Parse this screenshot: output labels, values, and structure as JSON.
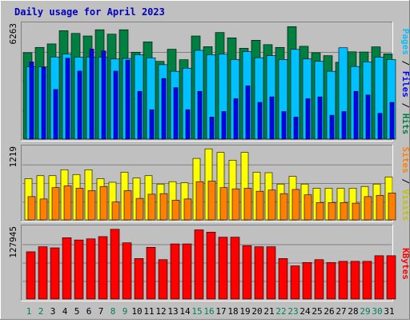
{
  "chart_data": [
    {
      "type": "bar",
      "panel": "pages-files-hits",
      "title": "Daily usage for April 2023",
      "ylabel_max": "6263",
      "legend": [
        "Pages",
        "Files",
        "Hits"
      ],
      "categories": [
        "1",
        "2",
        "3",
        "4",
        "5",
        "6",
        "7",
        "8",
        "9",
        "10",
        "11",
        "12",
        "13",
        "14",
        "15",
        "16",
        "17",
        "18",
        "19",
        "20",
        "21",
        "22",
        "23",
        "24",
        "25",
        "26",
        "27",
        "28",
        "29",
        "30",
        "31"
      ],
      "ylim": [
        0,
        6263
      ],
      "series": [
        {
          "name": "Hits",
          "color": "#008040",
          "values": [
            4700,
            4990,
            5180,
            5900,
            5750,
            5610,
            5950,
            5710,
            5950,
            4730,
            5290,
            4230,
            4890,
            4320,
            5610,
            5030,
            5800,
            5510,
            4940,
            5380,
            5140,
            4990,
            6120,
            5050,
            4700,
            4540,
            4180,
            4750,
            4740,
            5020,
            4640
          ]
        },
        {
          "name": "Files",
          "color": "#00c0ff",
          "values": [
            3940,
            3930,
            4470,
            4630,
            4460,
            4460,
            4450,
            4360,
            4390,
            4590,
            4420,
            4050,
            3690,
            3860,
            4830,
            4590,
            4620,
            4330,
            4760,
            4430,
            4540,
            4330,
            4880,
            4360,
            4230,
            3690,
            4970,
            3950,
            4200,
            4460,
            4330
          ]
        },
        {
          "name": "Pages",
          "color": "#0000ff",
          "values": [
            4200,
            3900,
            2700,
            4400,
            3700,
            4900,
            4800,
            3700,
            4300,
            2600,
            1600,
            3300,
            2800,
            1600,
            2600,
            1200,
            1500,
            2200,
            2900,
            2000,
            2300,
            1500,
            1200,
            2200,
            2300,
            1300,
            1500,
            2600,
            2400,
            1400,
            2000
          ]
        }
      ]
    },
    {
      "type": "bar",
      "panel": "sites-visits",
      "ylabel_max": "1219",
      "legend": [
        "Sites",
        "Visits"
      ],
      "categories": [
        "1",
        "2",
        "3",
        "4",
        "5",
        "6",
        "7",
        "8",
        "9",
        "10",
        "11",
        "12",
        "13",
        "14",
        "15",
        "16",
        "17",
        "18",
        "19",
        "20",
        "21",
        "22",
        "23",
        "24",
        "25",
        "26",
        "27",
        "28",
        "29",
        "30",
        "31"
      ],
      "ylim": [
        0,
        1219
      ],
      "series": [
        {
          "name": "Visits",
          "color": "#ffff00",
          "values": [
            690,
            740,
            740,
            840,
            760,
            840,
            690,
            630,
            800,
            700,
            740,
            600,
            640,
            620,
            1030,
            1190,
            1130,
            1000,
            1130,
            800,
            790,
            600,
            730,
            600,
            530,
            530,
            530,
            530,
            560,
            600,
            720
          ]
        },
        {
          "name": "Sites",
          "color": "#ff8000",
          "values": [
            390,
            350,
            540,
            570,
            530,
            490,
            560,
            300,
            490,
            360,
            430,
            440,
            330,
            350,
            640,
            650,
            540,
            520,
            530,
            480,
            500,
            440,
            510,
            420,
            290,
            290,
            290,
            280,
            390,
            410,
            450
          ]
        }
      ]
    },
    {
      "type": "bar",
      "panel": "kbytes",
      "ylabel_max": "127945",
      "legend": [
        "KBytes"
      ],
      "categories": [
        "1",
        "2",
        "3",
        "4",
        "5",
        "6",
        "7",
        "8",
        "9",
        "10",
        "11",
        "12",
        "13",
        "14",
        "15",
        "16",
        "17",
        "18",
        "19",
        "20",
        "21",
        "22",
        "23",
        "24",
        "25",
        "26",
        "27",
        "28",
        "29",
        "30",
        "31"
      ],
      "ylim": [
        0,
        127945
      ],
      "series": [
        {
          "name": "KBytes",
          "color": "#ff0000",
          "values": [
            84000,
            93000,
            91000,
            109000,
            105000,
            107000,
            111000,
            124000,
            100000,
            72000,
            92000,
            70000,
            98000,
            98000,
            123000,
            119000,
            110000,
            110000,
            95000,
            93000,
            93000,
            72000,
            59000,
            65000,
            70000,
            65000,
            67000,
            67000,
            67000,
            77000,
            77000
          ]
        }
      ]
    }
  ],
  "day_label_colors": {
    "weekday": "#000000",
    "weekend": "#00805c"
  },
  "weekend_days": [
    "1",
    "2",
    "8",
    "9",
    "15",
    "16",
    "22",
    "23",
    "29",
    "30"
  ]
}
